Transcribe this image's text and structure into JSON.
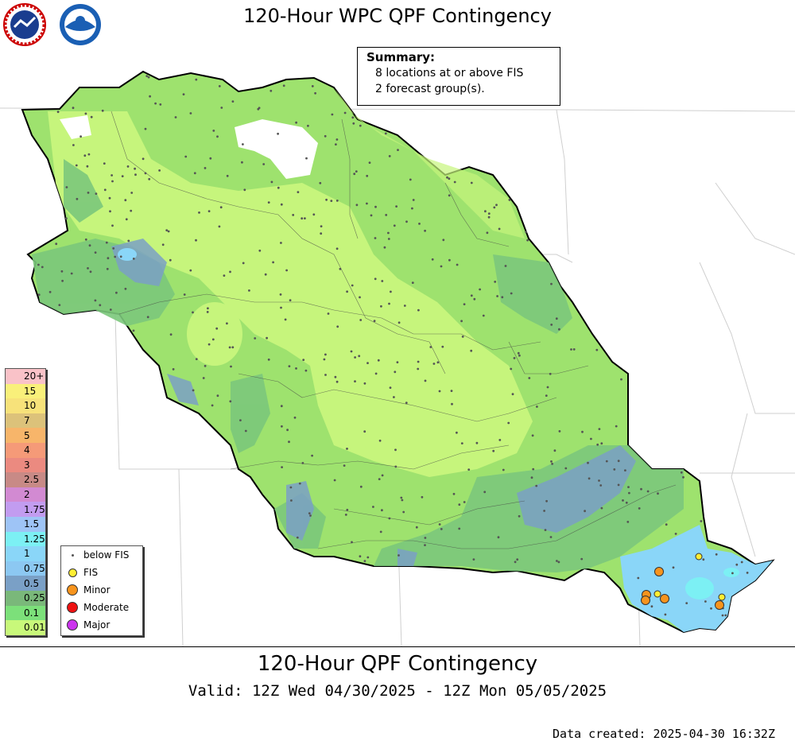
{
  "header": {
    "title": "120-Hour WPC QPF Contingency",
    "logo_left_name": "nws-logo",
    "logo_right_name": "noaa-logo"
  },
  "summary": {
    "heading": "Summary:",
    "line1": "8 locations at or above FIS",
    "line2": "2 forecast group(s)."
  },
  "color_legend": [
    {
      "label": "20+",
      "color": "#f9c2c8"
    },
    {
      "label": "15",
      "color": "#f9f07a"
    },
    {
      "label": "10",
      "color": "#f7e27a"
    },
    {
      "label": "7",
      "color": "#dcc27a"
    },
    {
      "label": "5",
      "color": "#f7b56a"
    },
    {
      "label": "4",
      "color": "#f59a78"
    },
    {
      "label": "3",
      "color": "#eb8a80"
    },
    {
      "label": "2.5",
      "color": "#c88a86"
    },
    {
      "label": "2",
      "color": "#d28ad2"
    },
    {
      "label": "1.75",
      "color": "#c29cf0"
    },
    {
      "label": "1.5",
      "color": "#9ec4f6"
    },
    {
      "label": "1.25",
      "color": "#7cf0f4"
    },
    {
      "label": "1",
      "color": "#8ad6f8"
    },
    {
      "label": "0.75",
      "color": "#8cc8f2"
    },
    {
      "label": "0.5",
      "color": "#7aa0c6"
    },
    {
      "label": "0.25",
      "color": "#7ab87a"
    },
    {
      "label": "0.1",
      "color": "#7ce07a"
    },
    {
      "label": "0.01",
      "color": "#c8f87a"
    }
  ],
  "symbol_legend": [
    {
      "label": "below FIS",
      "symbol": "small-dot",
      "color": "#555555"
    },
    {
      "label": "FIS",
      "symbol": "circle",
      "color": "#ffee33"
    },
    {
      "label": "Minor",
      "symbol": "circle",
      "color": "#f7941d"
    },
    {
      "label": "Moderate",
      "symbol": "circle",
      "color": "#ee1111"
    },
    {
      "label": "Major",
      "symbol": "circle",
      "color": "#cc33ee"
    }
  ],
  "footer": {
    "title": "120-Hour QPF Contingency",
    "valid": "Valid: 12Z Wed 04/30/2025 - 12Z Mon 05/05/2025",
    "created": "Data created: 2025-04-30 16:32Z"
  }
}
